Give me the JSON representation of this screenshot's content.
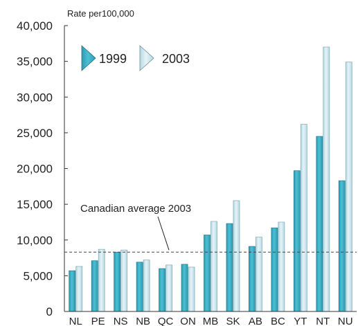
{
  "chart_data": {
    "type": "bar",
    "ylabel": "Rate per100,000",
    "xlabel": "",
    "ylim": [
      0,
      40000
    ],
    "yticks": [
      0,
      5000,
      10000,
      15000,
      20000,
      25000,
      30000,
      35000,
      40000
    ],
    "ytick_labels": [
      "0",
      "5,000",
      "10,000",
      "15,000",
      "20,000",
      "25,000",
      "30,000",
      "35,000",
      "40,000"
    ],
    "categories": [
      "NL",
      "PE",
      "NS",
      "NB",
      "QC",
      "ON",
      "MB",
      "SK",
      "AB",
      "BC",
      "YT",
      "NT",
      "NU"
    ],
    "series": [
      {
        "name": "1999",
        "color": "#3bb0c6",
        "values": [
          5700,
          7100,
          8300,
          6900,
          6000,
          6600,
          10700,
          12300,
          9100,
          11700,
          19700,
          24500,
          18300
        ]
      },
      {
        "name": "2003",
        "color": "#c5e4ec",
        "values": [
          6300,
          8700,
          8600,
          7200,
          6500,
          6200,
          12600,
          15500,
          10400,
          12500,
          26200,
          37000,
          34900
        ]
      }
    ],
    "reference_line": {
      "value": 8300,
      "label": "Canadian average 2003",
      "style": "dashed"
    },
    "legend_position": "top-left",
    "grid": false
  }
}
